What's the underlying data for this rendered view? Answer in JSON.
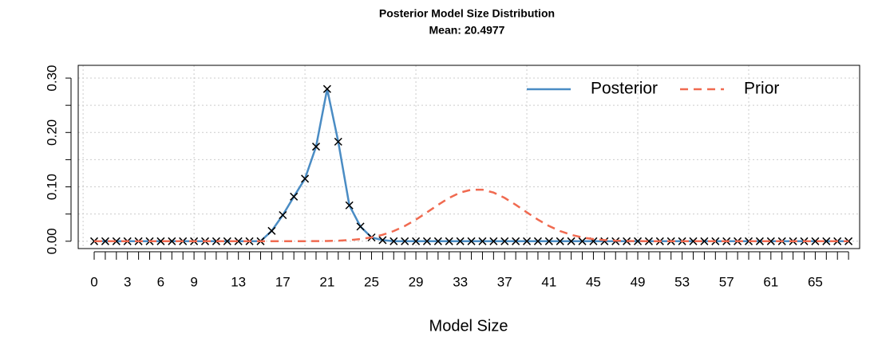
{
  "chart_data": {
    "type": "line",
    "title": "Posterior Model Size Distribution",
    "subtitle": "Mean: 20.4977",
    "x_label": "Model Size",
    "x": [
      0,
      1,
      2,
      3,
      4,
      5,
      6,
      7,
      8,
      9,
      10,
      11,
      12,
      13,
      14,
      15,
      16,
      17,
      18,
      19,
      20,
      21,
      22,
      23,
      24,
      25,
      26,
      27,
      28,
      29,
      30,
      31,
      32,
      33,
      34,
      35,
      36,
      37,
      38,
      39,
      40,
      41,
      42,
      43,
      44,
      45,
      46,
      47,
      48,
      49,
      50,
      51,
      52,
      53,
      54,
      55,
      56,
      57,
      58,
      59,
      60,
      61,
      62,
      63,
      64,
      65,
      66,
      67,
      68
    ],
    "series": [
      {
        "name": "Posterior",
        "color": "#4a8cc4",
        "dash": false,
        "markers": true,
        "values": [
          0,
          0,
          0,
          0,
          0,
          0,
          0,
          0,
          0,
          0,
          0,
          0,
          0,
          0,
          0,
          0,
          0.019,
          0.048,
          0.082,
          0.115,
          0.174,
          0.28,
          0.183,
          0.066,
          0.027,
          0.007,
          0.002,
          0,
          0,
          0,
          0,
          0,
          0,
          0,
          0,
          0,
          0,
          0,
          0,
          0,
          0,
          0,
          0,
          0,
          0,
          0,
          0,
          0,
          0,
          0,
          0,
          0,
          0,
          0,
          0,
          0,
          0,
          0,
          0,
          0,
          0,
          0,
          0,
          0,
          0,
          0,
          0,
          0,
          0
        ]
      },
      {
        "name": "Prior",
        "color": "#f06a50",
        "dash": true,
        "markers": false,
        "values": [
          0,
          0,
          0,
          0,
          0,
          0,
          0,
          0,
          0,
          0,
          0,
          0,
          0,
          0,
          0,
          0,
          0,
          0,
          0,
          0.0001,
          0.0002,
          0.0005,
          0.001,
          0.0021,
          0.0039,
          0.007,
          0.0118,
          0.0187,
          0.028,
          0.0397,
          0.0531,
          0.067,
          0.0797,
          0.0895,
          0.0948,
          0.0948,
          0.0895,
          0.0797,
          0.067,
          0.0531,
          0.0397,
          0.028,
          0.0187,
          0.0118,
          0.007,
          0.0039,
          0.0021,
          0.001,
          0.0005,
          0.0002,
          0.0001,
          0,
          0,
          0,
          0,
          0,
          0,
          0,
          0,
          0,
          0,
          0,
          0,
          0,
          0,
          0,
          0,
          0,
          0
        ]
      }
    ],
    "xlim": [
      -1.44,
      69
    ],
    "ylim": [
      -0.0135,
      0.3235
    ],
    "xticks": [
      0,
      3,
      6,
      9,
      13,
      17,
      21,
      25,
      29,
      33,
      37,
      41,
      45,
      49,
      53,
      57,
      61,
      65
    ],
    "xgrid": [
      -1,
      9,
      19,
      29,
      39,
      49,
      59,
      69
    ],
    "yticks": [
      {
        "value": 0,
        "label": "0.00"
      },
      {
        "value": 0.1,
        "label": "0.10"
      },
      {
        "value": 0.2,
        "label": "0.20"
      },
      {
        "value": 0.3,
        "label": "0.30"
      }
    ],
    "ygrid": [
      0,
      0.05,
      0.1,
      0.15,
      0.2,
      0.25,
      0.3
    ],
    "grid": true,
    "legend": "topright",
    "marker_color": "#000000"
  }
}
